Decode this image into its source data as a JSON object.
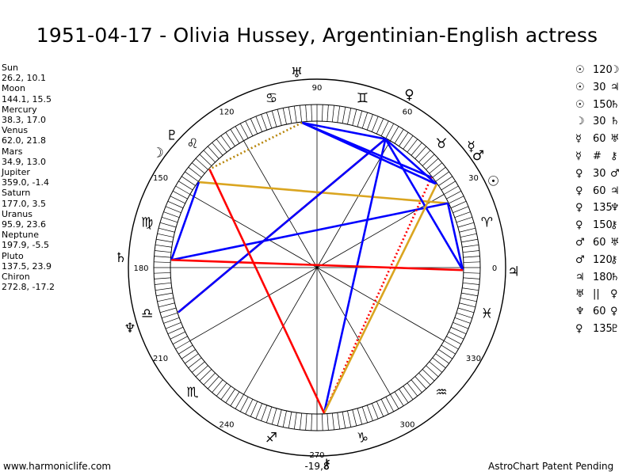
{
  "title": "1951-04-17 - Olivia Hussey, Argentinian-English actress",
  "planets": [
    {
      "name": "Sun",
      "values": "26.2, 10.1",
      "lon": 26.2,
      "glyph": "☉",
      "color": "#000000"
    },
    {
      "name": "Moon",
      "values": "144.1, 15.5",
      "lon": 144.1,
      "glyph": "☽",
      "color": "#000000"
    },
    {
      "name": "Mercury",
      "values": "38.3, 17.0",
      "lon": 38.3,
      "glyph": "☿",
      "color": "#000000"
    },
    {
      "name": "Venus",
      "values": "62.0, 21.8",
      "lon": 62.0,
      "glyph": "♀",
      "color": "#000000"
    },
    {
      "name": "Mars",
      "values": "34.9, 13.0",
      "lon": 34.9,
      "glyph": "♂",
      "color": "#000000"
    },
    {
      "name": "Jupiter",
      "values": "359.0, -1.4",
      "lon": 359.0,
      "glyph": "♃",
      "color": "#000000"
    },
    {
      "name": "Saturn",
      "values": "177.0, 3.5",
      "lon": 177.0,
      "glyph": "♄",
      "color": "#000000"
    },
    {
      "name": "Uranus",
      "values": "95.9, 23.6",
      "lon": 95.9,
      "glyph": "♅",
      "color": "#000000"
    },
    {
      "name": "Neptune",
      "values": "197.9, -5.5",
      "lon": 197.9,
      "glyph": "♆",
      "color": "#000000"
    },
    {
      "name": "Pluto",
      "values": "137.5, 23.9",
      "lon": 137.5,
      "glyph": "♇",
      "color": "#000000"
    },
    {
      "name": "Chiron",
      "values": "272.8, -17.2",
      "lon": 272.8,
      "glyph": "⚷",
      "color": "#000000"
    }
  ],
  "aspects": [
    {
      "a": "☉",
      "angle": "120",
      "b": "☽"
    },
    {
      "a": "☉",
      "angle": "30",
      "b": "♃"
    },
    {
      "a": "☉",
      "angle": "150",
      "b": "♄"
    },
    {
      "a": "☽",
      "angle": "30",
      "b": "♄"
    },
    {
      "a": "☿",
      "angle": "60",
      "b": "♅"
    },
    {
      "a": "☿",
      "angle": "#",
      "b": "⚷"
    },
    {
      "a": "♀",
      "angle": "30",
      "b": "♂"
    },
    {
      "a": "♀",
      "angle": "60",
      "b": "♃"
    },
    {
      "a": "♀",
      "angle": "135",
      "b": "♆"
    },
    {
      "a": "♀",
      "angle": "150",
      "b": "⚷"
    },
    {
      "a": "♂",
      "angle": "60",
      "b": "♅"
    },
    {
      "a": "♂",
      "angle": "120",
      "b": "⚷"
    },
    {
      "a": "♃",
      "angle": "180",
      "b": "♄"
    },
    {
      "a": "♅",
      "angle": "||",
      "b": "♀"
    },
    {
      "a": "♆",
      "angle": "60",
      "b": "♀"
    },
    {
      "a": "♀",
      "angle": "135",
      "b": "♇"
    }
  ],
  "wheel": {
    "degree_labels": [
      "0",
      "30",
      "60",
      "90",
      "120",
      "150",
      "180",
      "210",
      "240",
      "270",
      "300",
      "330"
    ],
    "bottom_label": "-19,8",
    "zodiac": [
      "♈",
      "♉",
      "♊",
      "♋",
      "♌",
      "♍",
      "♎",
      "♏",
      "♐",
      "♑",
      "♒",
      "♓"
    ]
  },
  "colors": {
    "blue": "#0000ff",
    "red": "#ff0000",
    "gold": "#daa520",
    "dotted_gold": "#b8860b"
  },
  "footer": {
    "left": "www.harmoniclife.com",
    "right": "AstroChart Patent Pending"
  }
}
